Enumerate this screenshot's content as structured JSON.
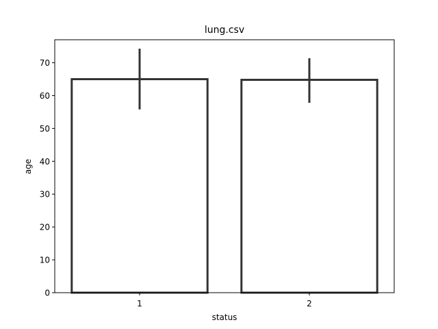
{
  "chart_data": {
    "type": "bar",
    "title": "lung.csv",
    "xlabel": "status",
    "ylabel": "age",
    "categories": [
      "1",
      "2"
    ],
    "values": [
      65.0,
      64.8
    ],
    "error_low": [
      55.8,
      57.8
    ],
    "error_high": [
      74.3,
      71.4
    ],
    "ylim": [
      0,
      77
    ],
    "yticks": [
      0,
      10,
      20,
      30,
      40,
      50,
      60,
      70
    ],
    "grid": false,
    "legend": "none",
    "colors": {
      "bar_fill": "#ffffff",
      "bar_edge": "#333333",
      "error_bar": "#333333",
      "axis": "#000000"
    }
  }
}
